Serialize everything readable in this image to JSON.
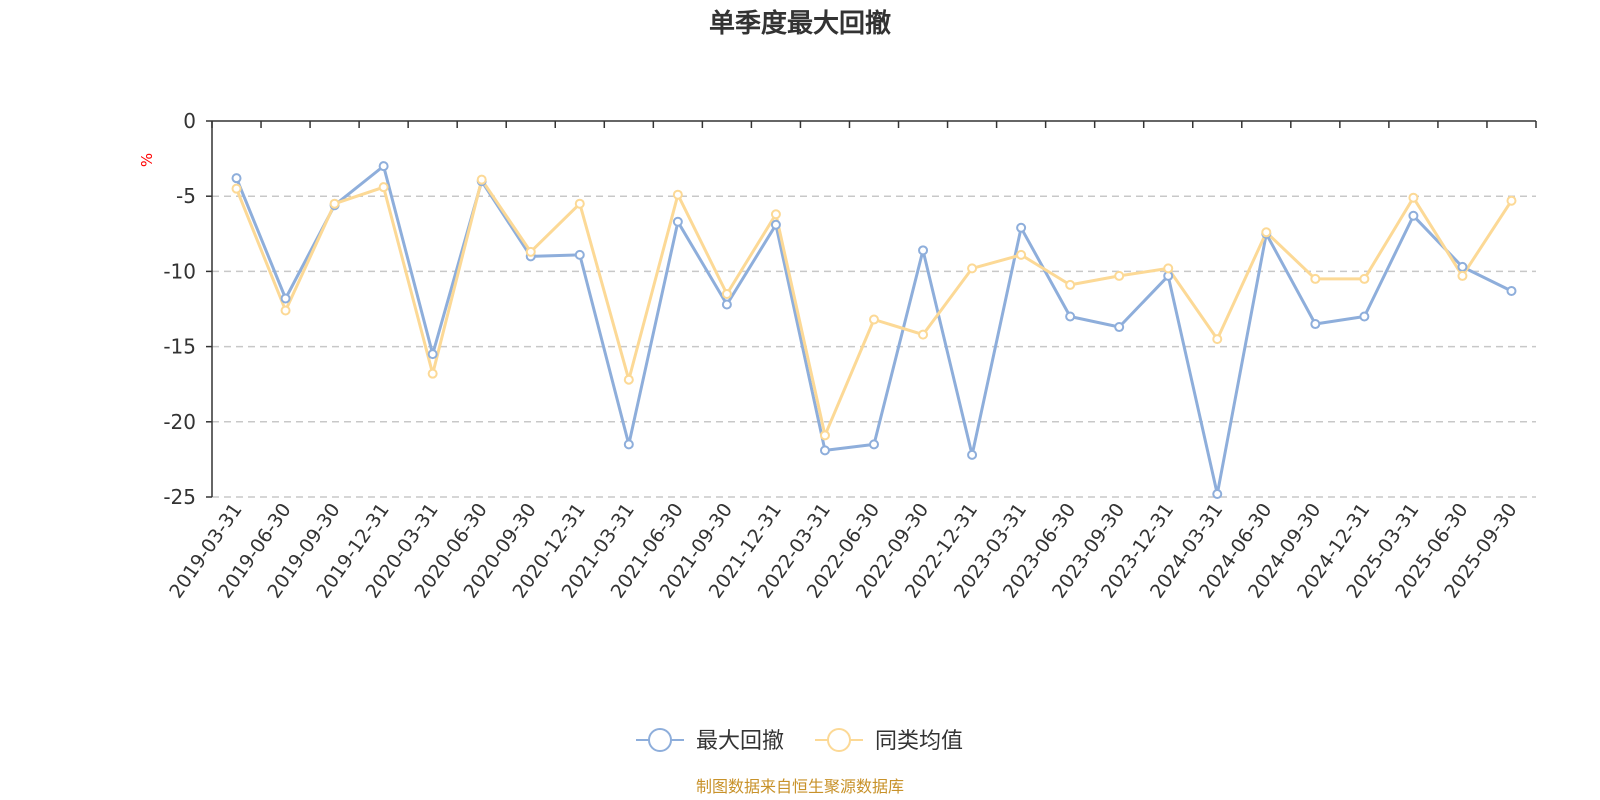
{
  "chart_data": {
    "type": "line",
    "title": "单季度最大回撤",
    "ylabel": "%",
    "ylim": [
      -25,
      0
    ],
    "yticks": [
      0,
      -5,
      -10,
      -15,
      -20,
      -25
    ],
    "grid": true,
    "legend_position": "bottom",
    "categories": [
      "2019-03-31",
      "2019-06-30",
      "2019-09-30",
      "2019-12-31",
      "2020-03-31",
      "2020-06-30",
      "2020-09-30",
      "2020-12-31",
      "2021-03-31",
      "2021-06-30",
      "2021-09-30",
      "2021-12-31",
      "2022-03-31",
      "2022-06-30",
      "2022-09-30",
      "2022-12-31",
      "2023-03-31",
      "2023-06-30",
      "2023-09-30",
      "2023-12-31",
      "2024-03-31",
      "2024-06-30",
      "2024-09-30",
      "2024-12-31",
      "2025-03-31",
      "2025-06-30",
      "2025-09-30"
    ],
    "series": [
      {
        "name": "最大回撤",
        "color": "#8eaedb",
        "values": [
          -3.8,
          -11.8,
          -5.6,
          -3.0,
          -15.5,
          -4.0,
          -9.0,
          -8.9,
          -21.5,
          -6.7,
          -12.2,
          -6.9,
          -21.9,
          -21.5,
          -8.6,
          -22.2,
          -7.1,
          -13.0,
          -13.7,
          -10.3,
          -24.8,
          -7.5,
          -13.5,
          -13.0,
          -6.3,
          -9.7,
          -11.3
        ]
      },
      {
        "name": "同类均值",
        "color": "#fcd996",
        "values": [
          -4.5,
          -12.6,
          -5.5,
          -4.4,
          -16.8,
          -3.9,
          -8.7,
          -5.5,
          -17.2,
          -4.9,
          -11.5,
          -6.2,
          -20.9,
          -13.2,
          -14.2,
          -9.8,
          -8.9,
          -10.9,
          -10.3,
          -9.8,
          -14.5,
          -7.4,
          -10.5,
          -10.5,
          -5.1,
          -10.3,
          -5.3
        ]
      }
    ]
  },
  "footer": {
    "source": "制图数据来自恒生聚源数据库"
  }
}
